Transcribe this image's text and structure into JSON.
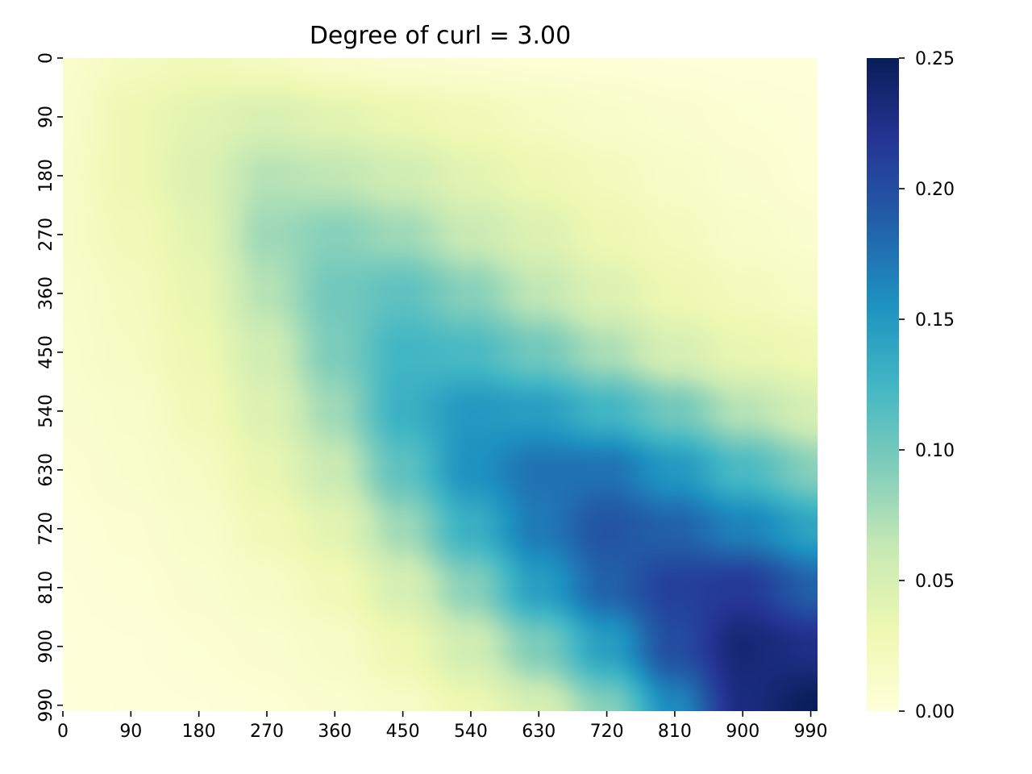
{
  "chart_data": {
    "type": "heatmap",
    "title": "Degree of curl = 3.00",
    "xlabel": "",
    "ylabel": "",
    "x_tick_labels": [
      "0",
      "90",
      "180",
      "270",
      "360",
      "450",
      "540",
      "630",
      "720",
      "810",
      "900",
      "990"
    ],
    "y_tick_labels": [
      "0",
      "90",
      "180",
      "270",
      "360",
      "450",
      "540",
      "630",
      "720",
      "810",
      "900",
      "990"
    ],
    "x_range": [
      0,
      999
    ],
    "y_range": [
      0,
      999
    ],
    "y_axis_inverted": true,
    "colormap": "YlGnBu",
    "colormap_stops": [
      "#ffffd9",
      "#edf8b1",
      "#c7e9b4",
      "#7fcdbb",
      "#41b6c4",
      "#1d91c0",
      "#225ea8",
      "#253494",
      "#081d58"
    ],
    "colorbar": {
      "min": 0.0,
      "max": 0.25,
      "tick_values": [
        0.0,
        0.05,
        0.1,
        0.15,
        0.2,
        0.25
      ],
      "tick_labels": [
        "0.00",
        "0.05",
        "0.10",
        "0.15",
        "0.20",
        "0.25"
      ]
    },
    "grid": false,
    "value_grid": {
      "x": [
        0,
        90,
        180,
        270,
        360,
        450,
        540,
        630,
        720,
        810,
        900,
        999
      ],
      "y": [
        0,
        90,
        180,
        270,
        360,
        450,
        540,
        630,
        720,
        810,
        900,
        999
      ],
      "values": [
        [
          0.01,
          0.02,
          0.025,
          0.02,
          0.012,
          0.008,
          0.006,
          0.004,
          0.003,
          0.002,
          0.001,
          0.0
        ],
        [
          0.012,
          0.03,
          0.04,
          0.048,
          0.04,
          0.032,
          0.025,
          0.018,
          0.012,
          0.008,
          0.005,
          0.003
        ],
        [
          0.015,
          0.03,
          0.045,
          0.07,
          0.065,
          0.055,
          0.04,
          0.03,
          0.022,
          0.014,
          0.008,
          0.004
        ],
        [
          0.015,
          0.025,
          0.04,
          0.08,
          0.09,
          0.08,
          0.06,
          0.045,
          0.03,
          0.022,
          0.013,
          0.008
        ],
        [
          0.012,
          0.02,
          0.035,
          0.07,
          0.1,
          0.11,
          0.09,
          0.065,
          0.045,
          0.03,
          0.022,
          0.016
        ],
        [
          0.01,
          0.018,
          0.03,
          0.055,
          0.095,
          0.125,
          0.12,
          0.1,
          0.075,
          0.05,
          0.035,
          0.028
        ],
        [
          0.008,
          0.012,
          0.025,
          0.045,
          0.08,
          0.13,
          0.15,
          0.145,
          0.125,
          0.1,
          0.07,
          0.05
        ],
        [
          0.005,
          0.01,
          0.018,
          0.035,
          0.06,
          0.11,
          0.155,
          0.175,
          0.175,
          0.15,
          0.12,
          0.09
        ],
        [
          0.003,
          0.006,
          0.012,
          0.025,
          0.04,
          0.08,
          0.13,
          0.17,
          0.195,
          0.185,
          0.165,
          0.14
        ],
        [
          0.002,
          0.004,
          0.008,
          0.015,
          0.025,
          0.05,
          0.09,
          0.145,
          0.185,
          0.21,
          0.215,
          0.185
        ],
        [
          0.001,
          0.002,
          0.005,
          0.008,
          0.015,
          0.03,
          0.055,
          0.095,
          0.145,
          0.2,
          0.235,
          0.225
        ],
        [
          0.0,
          0.001,
          0.002,
          0.004,
          0.008,
          0.015,
          0.03,
          0.05,
          0.09,
          0.16,
          0.23,
          0.25
        ]
      ]
    }
  }
}
